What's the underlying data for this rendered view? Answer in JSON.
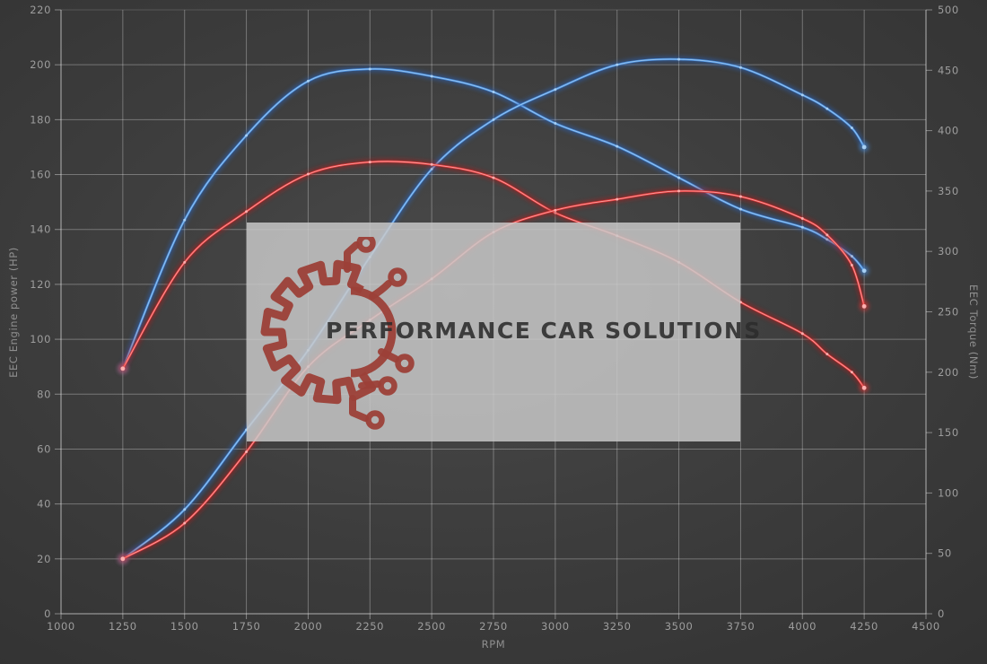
{
  "watermark": {
    "text": "PERFORMANCE CAR SOLUTIONS",
    "logo_color": "#9c4038"
  },
  "chart_data": {
    "type": "line",
    "xlabel": "RPM",
    "ylabel_left": "EEC Engine power (HP)",
    "ylabel_right": "EEC Torque (Nm)",
    "xlim": [
      1000,
      4500
    ],
    "ylim_left": [
      0,
      220
    ],
    "ylim_right": [
      0,
      500
    ],
    "grid": true,
    "legend": "none",
    "x_ticks": [
      1000,
      1250,
      1500,
      1750,
      2000,
      2250,
      2500,
      2750,
      3000,
      3250,
      3500,
      3750,
      4000,
      4250,
      4500
    ],
    "left_ticks": [
      0,
      20,
      40,
      60,
      80,
      100,
      120,
      140,
      160,
      180,
      200,
      220
    ],
    "right_ticks": [
      0,
      50,
      100,
      150,
      200,
      250,
      300,
      350,
      400,
      450,
      500
    ],
    "x": [
      1250,
      1500,
      1750,
      2000,
      2250,
      2500,
      2750,
      3000,
      3250,
      3500,
      3750,
      4000,
      4100,
      4200,
      4250
    ],
    "series": [
      {
        "name": "blue-torque-nm",
        "axis": "right",
        "color": "#4a8fde",
        "glow": "#2a62b8",
        "bright": "#aad2f5",
        "values": [
          203,
          326,
          396,
          441,
          451,
          445,
          432,
          406,
          387,
          361,
          335,
          320,
          310,
          296,
          284
        ]
      },
      {
        "name": "blue-power-hp",
        "axis": "left",
        "color": "#4a8fde",
        "glow": "#2a62b8",
        "bright": "#aad2f5",
        "values": [
          20,
          38,
          67,
          96,
          130,
          162,
          180,
          191,
          200,
          202,
          199,
          189,
          184,
          177,
          170
        ]
      },
      {
        "name": "red-torque-nm",
        "axis": "right",
        "color": "#e23a3a",
        "glow": "#a81d1d",
        "bright": "#ffb3b3",
        "values": [
          203,
          291,
          333,
          364,
          374,
          372,
          361,
          332,
          313,
          291,
          258,
          232,
          215,
          200,
          187
        ]
      },
      {
        "name": "red-power-hp",
        "axis": "left",
        "color": "#e23a3a",
        "glow": "#a81d1d",
        "bright": "#ffb3b3",
        "values": [
          20,
          33,
          59,
          90,
          107,
          122,
          139,
          147,
          151,
          154,
          152,
          144,
          138,
          127,
          112
        ]
      }
    ]
  }
}
